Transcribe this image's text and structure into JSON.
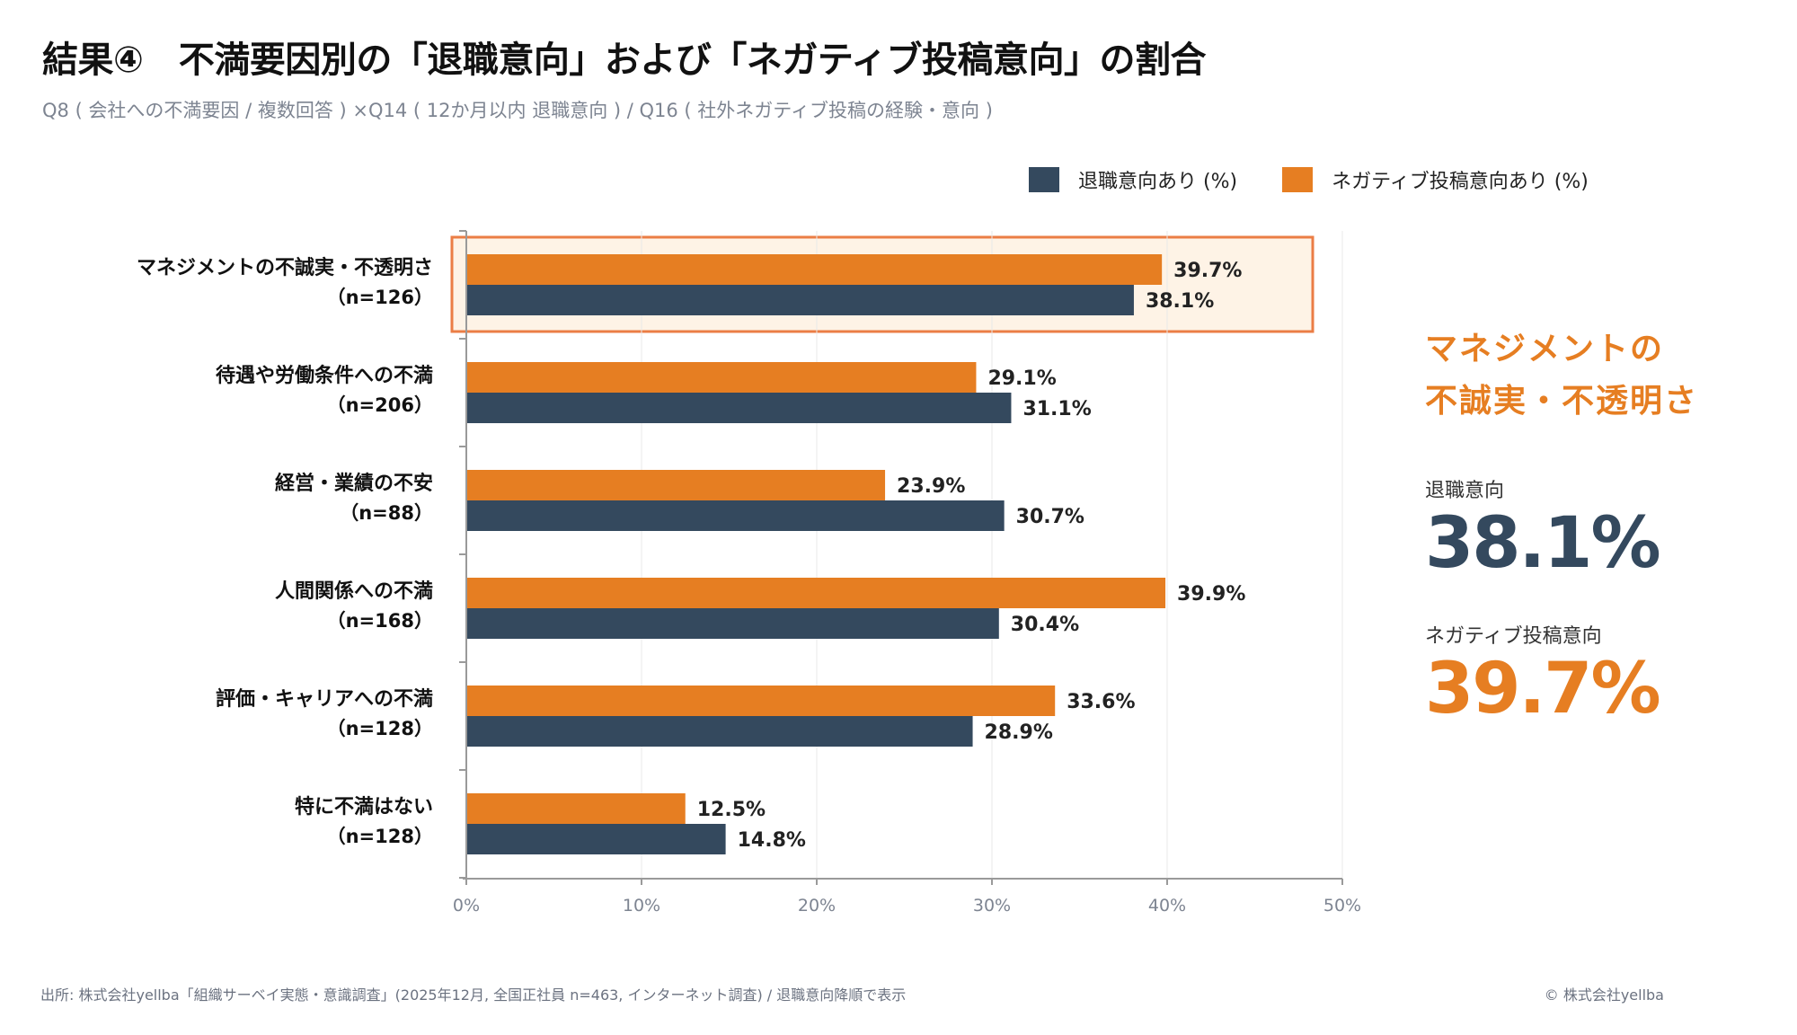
{
  "header": {
    "title": "結果④　不満要因別の「退職意向」および「ネガティブ投稿意向」の割合",
    "subtitle": "Q8 ( 会社への不満要因 / 複数回答 ) ×Q14 ( 12か月以内 退職意向 ) / Q16 ( 社外ネガティブ投稿の経験・意向 )"
  },
  "colors": {
    "retire": "#34495E",
    "negative": "#E67E22",
    "highlight_fill": "#FEF3E6",
    "highlight_border": "#EB7D45"
  },
  "chart_data": {
    "type": "bar",
    "orientation": "horizontal",
    "title": "不満要因別の「退職意向」および「ネガティブ投稿意向」の割合",
    "categories": [
      "マネジメントの不誠実・不透明さ",
      "待遇や労働条件への不満",
      "経営・業績の不安",
      "人間関係への不満",
      "評価・キャリアへの不満",
      "特に不満はない"
    ],
    "category_n": [
      "（n=126）",
      "（n=206）",
      "（n=88）",
      "（n=168）",
      "（n=128）",
      "（n=128）"
    ],
    "series": [
      {
        "name": "ネガティブ投稿意向あり (%)",
        "color": "#E67E22",
        "values": [
          39.7,
          29.1,
          23.9,
          39.9,
          33.6,
          12.5
        ]
      },
      {
        "name": "退職意向あり (%)",
        "color": "#34495E",
        "values": [
          38.1,
          31.1,
          30.7,
          30.4,
          28.9,
          14.8
        ]
      }
    ],
    "legend_order": [
      "退職意向あり (%)",
      "ネガティブ投稿意向あり (%)"
    ],
    "xlim": [
      0,
      50
    ],
    "xticks": [
      0,
      10,
      20,
      30,
      40,
      50
    ],
    "xtick_labels": [
      "0%",
      "10%",
      "20%",
      "30%",
      "40%",
      "50%"
    ],
    "grid": true,
    "legend_position": "top-right",
    "highlighted_category": "マネジメントの不誠実・不透明さ"
  },
  "legend": {
    "retire_label": "退職意向あり (%)",
    "negative_label": "ネガティブ投稿意向あり (%)"
  },
  "side_panel": {
    "title_line1": "マネジメントの",
    "title_line2": "不誠実・不透明さ",
    "retire_label": "退職意向",
    "retire_value": "38.1%",
    "negative_label": "ネガティブ投稿意向",
    "negative_value": "39.7%"
  },
  "footer": {
    "source": "出所: 株式会社yellba「組織サーベイ実態・意識調査」(2025年12月, 全国正社員 n=463, インターネット調査) / 退職意向降順で表示",
    "copyright": "© 株式会社yellba"
  }
}
